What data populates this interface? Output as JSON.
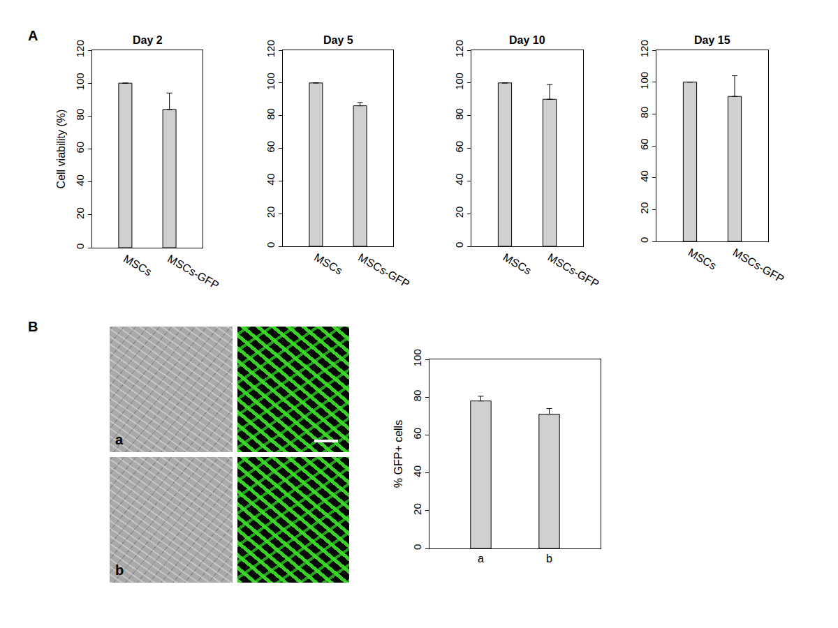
{
  "panel_labels": [
    "A",
    "B"
  ],
  "images": [
    {
      "label": "a"
    },
    {
      "label": "b"
    }
  ],
  "chart_data": [
    {
      "type": "bar",
      "title": "Day 2",
      "categories": [
        "MSCs",
        "MSCs-GFP"
      ],
      "values": [
        100,
        84
      ],
      "errors": [
        null,
        10
      ],
      "y_label": "Cell viability (%)",
      "ylim": [
        0,
        120
      ],
      "yticks": [
        0,
        20,
        40,
        60,
        80,
        100,
        120
      ],
      "color": "#d0d0d0"
    },
    {
      "type": "bar",
      "title": "Day 5",
      "categories": [
        "MSCs",
        "MSCs-GFP"
      ],
      "values": [
        100,
        86
      ],
      "errors": [
        null,
        2
      ],
      "ylim": [
        0,
        120
      ],
      "yticks": [
        0,
        20,
        40,
        60,
        80,
        100,
        120
      ],
      "color": "#d0d0d0"
    },
    {
      "type": "bar",
      "title": "Day 10",
      "categories": [
        "MSCs",
        "MSCs-GFP"
      ],
      "values": [
        100,
        90
      ],
      "errors": [
        null,
        9
      ],
      "ylim": [
        0,
        120
      ],
      "yticks": [
        0,
        20,
        40,
        60,
        80,
        100,
        120
      ],
      "color": "#d0d0d0"
    },
    {
      "type": "bar",
      "title": "Day 15",
      "categories": [
        "MSCs",
        "MSCs-GFP"
      ],
      "values": [
        100,
        91
      ],
      "errors": [
        null,
        13
      ],
      "ylim": [
        0,
        120
      ],
      "yticks": [
        0,
        20,
        40,
        60,
        80,
        100,
        120
      ],
      "color": "#d0d0d0"
    },
    {
      "type": "bar",
      "categories": [
        "a",
        "b"
      ],
      "values": [
        78,
        71
      ],
      "errors": [
        2.5,
        3
      ],
      "y_label": "% GFP+ cells",
      "ylim": [
        0,
        100
      ],
      "yticks": [
        0,
        20,
        40,
        60,
        80,
        100
      ],
      "color": "#d0d0d0"
    }
  ]
}
